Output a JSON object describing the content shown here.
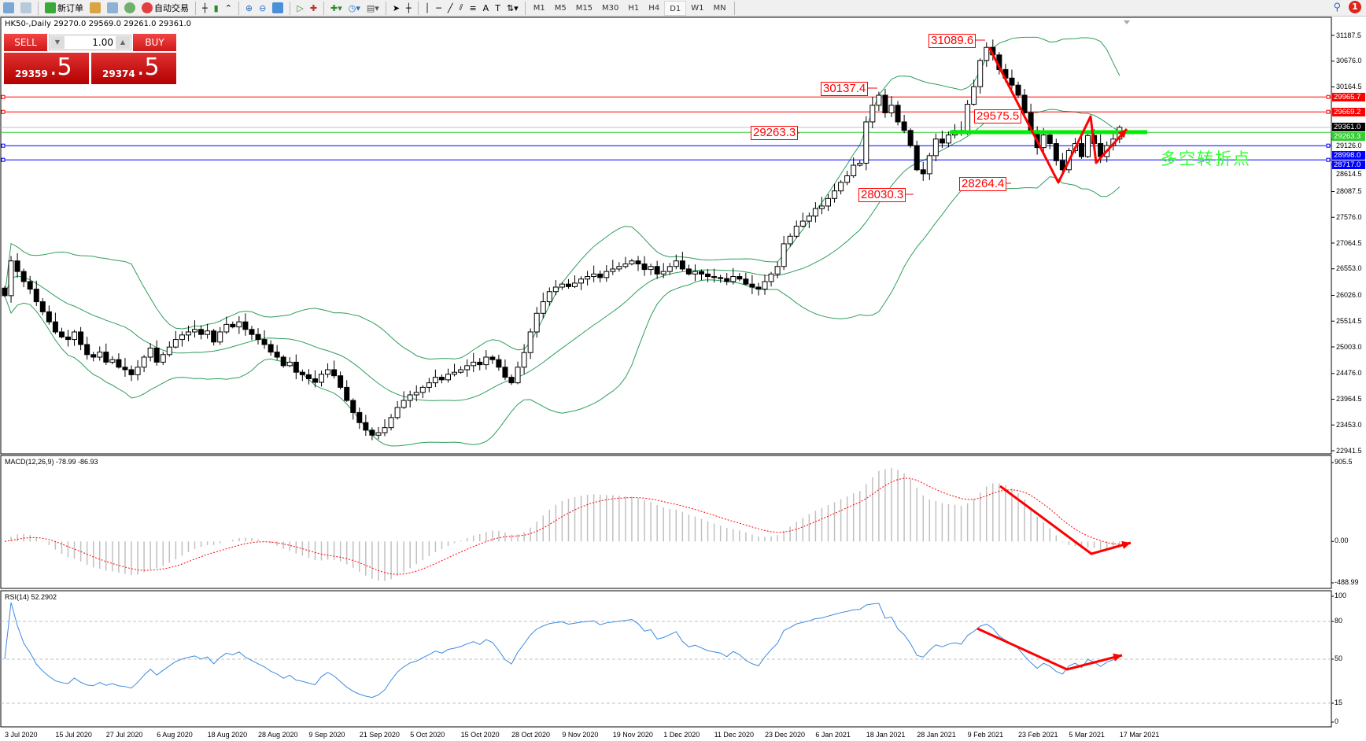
{
  "toolbar": {
    "new_order": "新订单",
    "auto_trading": "自动交易",
    "timeframes": [
      "M1",
      "M5",
      "M15",
      "M30",
      "H1",
      "H4",
      "D1",
      "W1",
      "MN"
    ],
    "active_timeframe": "D1",
    "notification_count": "1"
  },
  "chart_header": {
    "title": "HK50-,Daily  29270.0 29569.0 29261.0 29361.0"
  },
  "trade_panel": {
    "sell_label": "SELL",
    "buy_label": "BUY",
    "lot": "1.00",
    "sell_price_small": "29359",
    "sell_price_big": ".5",
    "buy_price_small": "29374",
    "buy_price_big": ".5"
  },
  "annotations": {
    "labels": [
      "31089.6",
      "30137.4",
      "29263.3",
      "28030.3",
      "29575.5",
      "28264.4"
    ],
    "turning_point_text": "多空转折点",
    "arrow_color": "#ff0000",
    "support_color": "#00ee00"
  },
  "chart_data": [
    {
      "type": "candlestick",
      "symbol": "HK50-",
      "timeframe": "Daily",
      "y_ticks": [
        "31187.5",
        "30676.0",
        "30164.5",
        "29126.0",
        "28614.5",
        "28087.5",
        "27576.0",
        "27064.5",
        "26553.0",
        "26026.0",
        "25514.5",
        "25003.0",
        "24476.0",
        "23964.5",
        "23453.0",
        "22941.5"
      ],
      "ylim": [
        22941.5,
        31187.5
      ],
      "x_ticks": [
        "3 Jul 2020",
        "15 Jul 2020",
        "27 Jul 2020",
        "6 Aug 2020",
        "18 Aug 2020",
        "28 Aug 2020",
        "9 Sep 2020",
        "21 Sep 2020",
        "5 Oct 2020",
        "15 Oct 2020",
        "28 Oct 2020",
        "9 Nov 2020",
        "19 Nov 2020",
        "1 Dec 2020",
        "11 Dec 2020",
        "23 Dec 2020",
        "6 Jan 2021",
        "18 Jan 2021",
        "28 Jan 2021",
        "9 Feb 2021",
        "23 Feb 2021",
        "5 Mar 2021",
        "17 Mar 2021"
      ],
      "closes": [
        26020,
        26710,
        26500,
        26300,
        26150,
        25900,
        25700,
        25500,
        25300,
        25200,
        25150,
        25300,
        25050,
        24850,
        24800,
        24900,
        24700,
        24750,
        24600,
        24550,
        24450,
        24600,
        24800,
        24980,
        24700,
        24850,
        25000,
        25150,
        25240,
        25300,
        25350,
        25250,
        25320,
        25100,
        25300,
        25450,
        25400,
        25500,
        25350,
        25250,
        25150,
        25050,
        24900,
        24800,
        24630,
        24700,
        24500,
        24450,
        24370,
        24300,
        24460,
        24550,
        24430,
        24200,
        23940,
        23700,
        23500,
        23350,
        23250,
        23300,
        23400,
        23600,
        23800,
        23940,
        24050,
        24100,
        24200,
        24290,
        24400,
        24350,
        24460,
        24500,
        24550,
        24630,
        24700,
        24650,
        24800,
        24750,
        24600,
        24400,
        24290,
        24600,
        24890,
        25300,
        25670,
        25900,
        26100,
        26190,
        26250,
        26200,
        26270,
        26350,
        26400,
        26450,
        26380,
        26500,
        26550,
        26600,
        26650,
        26710,
        26650,
        26540,
        26600,
        26450,
        26500,
        26600,
        26710,
        26550,
        26450,
        26500,
        26450,
        26400,
        26380,
        26360,
        26300,
        26400,
        26350,
        26250,
        26190,
        26150,
        26300,
        26450,
        26600,
        27050,
        27200,
        27400,
        27500,
        27600,
        27750,
        27800,
        27950,
        28100,
        28270,
        28400,
        28610,
        28650,
        29470,
        29800,
        30000,
        29650,
        29800,
        29470,
        29300,
        29000,
        28520,
        28440,
        28800,
        29130,
        29050,
        29210,
        29300,
        29250,
        29820,
        30170,
        30690,
        30950,
        30800,
        30510,
        30340,
        30200,
        30000,
        29650,
        29300,
        28960,
        29210,
        29040,
        28700,
        28520,
        28900,
        29040,
        28780,
        29200,
        29040,
        28780,
        29000,
        29130,
        29361
      ],
      "bollinger": {
        "period": 20,
        "deviation": 2,
        "color": "#2e9e5b"
      },
      "horizontal_lines": [
        {
          "value": "29965.7",
          "color": "#ff0000"
        },
        {
          "value": "29669.2",
          "color": "#ff0000"
        },
        {
          "value": "29361.0",
          "color": "#000000"
        },
        {
          "value": "29263.3",
          "color": "#33cc33"
        },
        {
          "value": "28998.0",
          "color": "#0000ff"
        },
        {
          "value": "28717.0",
          "color": "#0000ff"
        }
      ]
    },
    {
      "type": "macd",
      "title": "MACD(12,26,9) -78.99 -86.93",
      "y_ticks": [
        "905.5",
        "0.00",
        "-488.99"
      ],
      "ylim": [
        -488.99,
        905.5
      ],
      "histogram_color": "#c0c0c0",
      "signal_color": "#ff0000"
    },
    {
      "type": "rsi",
      "title": "RSI(14) 52.2902",
      "y_ticks": [
        "100",
        "80",
        "50",
        "15",
        "0"
      ],
      "levels": [
        80,
        50,
        15
      ],
      "ylim": [
        0,
        100
      ],
      "line_color": "#3c8be0"
    }
  ]
}
